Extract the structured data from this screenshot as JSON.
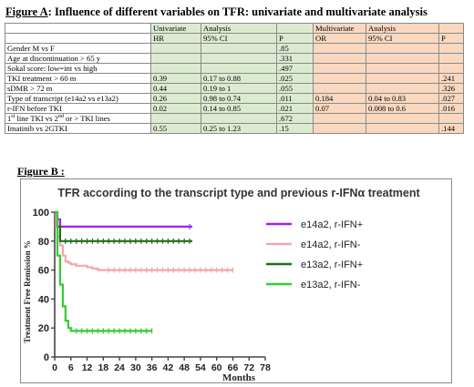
{
  "figA": {
    "label": "Figure A",
    "title": ": Influence of different variables on TFR: univariate and multivariate analysis"
  },
  "table": {
    "header": [
      "",
      "Univariate",
      "Analysis",
      "",
      "Multivariate",
      "Analysis",
      ""
    ],
    "subheader": [
      "",
      "HR",
      "95% CI",
      "P",
      "OR",
      "95% CI",
      "P"
    ],
    "rows": [
      [
        "Gender M vs F",
        "",
        "",
        ".85",
        "",
        "",
        ""
      ],
      [
        "Age at discontinuation > 65 y",
        "",
        "",
        ".331",
        "",
        "",
        ""
      ],
      [
        "Sokal score: low=int vs high",
        "",
        "",
        ".497",
        "",
        "",
        ""
      ],
      [
        "TKI treatment > 60 m",
        "0.39",
        "0.17 to 0.88",
        ".025",
        "",
        "",
        ".241"
      ],
      [
        "sDMR > 72 m",
        "0.44",
        "0.19 to 1",
        ".055",
        "",
        "",
        ".326"
      ],
      [
        "Type of transcript (e14a2 vs e13a2)",
        "0.26",
        "0.98 to 0.74",
        ".011",
        "0.184",
        "0.04 to 0.83",
        ".027"
      ],
      [
        "r-IFN before TKI",
        "0.02",
        "0.14 to 0.85",
        ".021",
        "0.07",
        "0.008 to 0.6",
        ".016"
      ],
      [
        "1st line TKI vs 2nd or > TKI lines",
        "",
        "",
        ".672",
        "",
        "",
        ""
      ],
      [
        "Imatinib vs 2GTKI",
        "0.55",
        "0.25 to 1.23",
        ".15",
        "",
        "",
        ".144"
      ]
    ]
  },
  "figB": {
    "label": "Figure B :"
  },
  "chart_data": {
    "type": "line",
    "title": "TFR according to the transcript type and previous r-IFNα treatment",
    "xlabel": "Months",
    "ylabel": "Treatment Free Remission %",
    "xticks": [
      "0",
      "6",
      "12",
      "18",
      "24",
      "30",
      "36",
      "42",
      "48",
      "54",
      "60",
      "66",
      "72",
      "78"
    ],
    "yticks": [
      "0",
      "20",
      "40",
      "60",
      "80",
      "100"
    ],
    "xlim": [
      0,
      78
    ],
    "ylim": [
      0,
      100
    ],
    "legend_position": "right",
    "series": [
      {
        "name": "e14a2, r-IFN+",
        "color": "#a020f0",
        "points": [
          [
            0,
            100
          ],
          [
            1,
            95
          ],
          [
            2,
            90
          ],
          [
            48,
            90
          ],
          [
            51,
            90
          ]
        ]
      },
      {
        "name": "e14a2, r-IFN-",
        "color": "#f4a7a7",
        "points": [
          [
            0,
            100
          ],
          [
            0.5,
            90
          ],
          [
            1,
            83
          ],
          [
            2,
            77
          ],
          [
            3,
            70
          ],
          [
            4,
            66
          ],
          [
            5,
            65
          ],
          [
            6,
            64
          ],
          [
            8,
            63
          ],
          [
            10,
            63
          ],
          [
            12,
            62
          ],
          [
            14,
            61
          ],
          [
            16,
            60
          ],
          [
            18,
            60
          ],
          [
            66,
            60
          ]
        ]
      },
      {
        "name": "e13a2, r-IFN+",
        "color": "#1f6b1f",
        "points": [
          [
            0,
            100
          ],
          [
            1,
            90
          ],
          [
            2,
            80
          ],
          [
            51,
            80
          ]
        ]
      },
      {
        "name": "e13a2, r-IFN-",
        "color": "#33cc33",
        "points": [
          [
            0,
            100
          ],
          [
            1,
            70
          ],
          [
            2,
            50
          ],
          [
            3,
            35
          ],
          [
            4,
            25
          ],
          [
            5,
            20
          ],
          [
            6,
            18
          ],
          [
            36,
            18
          ]
        ]
      }
    ]
  }
}
